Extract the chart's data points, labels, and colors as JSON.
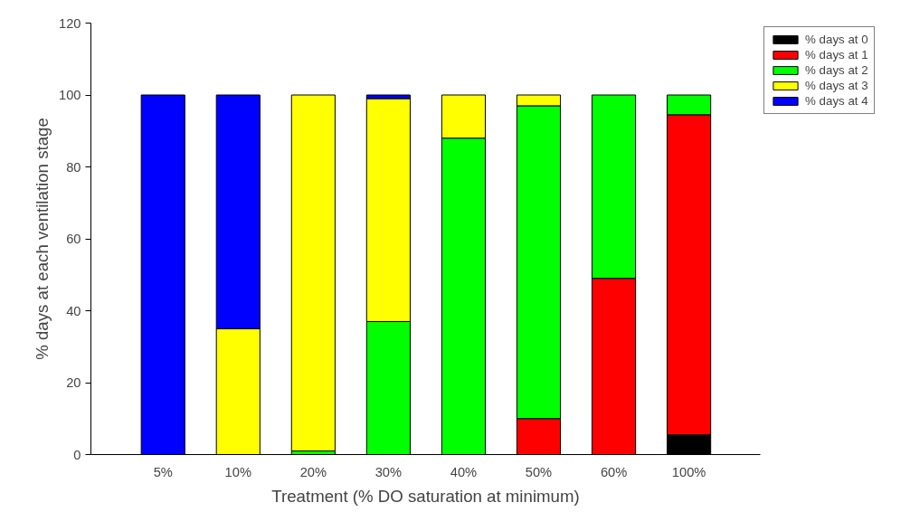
{
  "chart_data": {
    "type": "bar",
    "stacked": true,
    "xlabel": "Treatment (% DO saturation at minimum)",
    "ylabel": "% days at each ventilation stage",
    "categories": [
      "5%",
      "10%",
      "20%",
      "30%",
      "40%",
      "50%",
      "60%",
      "100%"
    ],
    "series": [
      {
        "name": "% days at 0",
        "color": "#000000",
        "values": [
          null,
          null,
          null,
          null,
          null,
          null,
          null,
          5.5
        ]
      },
      {
        "name": "% days at 1",
        "color": "#ff0000",
        "values": [
          null,
          null,
          null,
          null,
          null,
          10,
          49,
          89
        ]
      },
      {
        "name": "% days at 2",
        "color": "#00ff00",
        "values": [
          null,
          null,
          1,
          37,
          88,
          87,
          51,
          5.5
        ]
      },
      {
        "name": "% days at 3",
        "color": "#ffff00",
        "values": [
          null,
          35,
          99,
          62,
          12,
          3,
          null,
          null
        ]
      },
      {
        "name": "% days at 4",
        "color": "#0000ff",
        "values": [
          100,
          65,
          null,
          1,
          null,
          null,
          null,
          null
        ]
      }
    ],
    "ylim": [
      0,
      120
    ],
    "yticks": [
      0,
      20,
      40,
      60,
      80,
      100,
      120
    ],
    "legend": "top right",
    "grid": false
  }
}
